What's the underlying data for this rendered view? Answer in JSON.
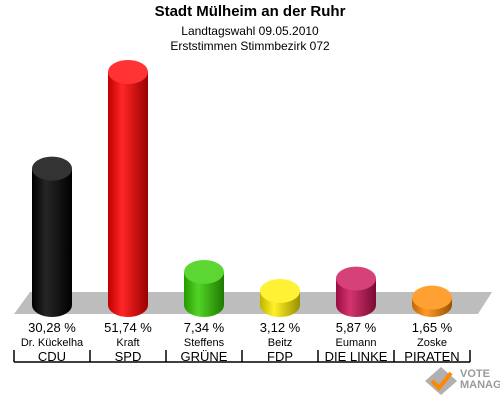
{
  "header": {
    "title": "Stadt Mülheim an der Ruhr",
    "subtitle": "Landtagswahl 09.05.2010",
    "subtitle2": "Erststimmen Stimmbezirk 072"
  },
  "logo": {
    "line1": "VOTE",
    "line2": "MANAGER",
    "icon": "checkmark-ballot-icon"
  },
  "colors": {
    "CDU": "#000000",
    "SPD": "#ff0000",
    "GRUENE": "#33cc00",
    "FDP": "#ffee00",
    "LINKE": "#cc1155",
    "PIRATEN": "#ff8800",
    "floor": "#bdbdbd"
  },
  "chart_data": {
    "type": "bar",
    "title": "Stadt Mülheim an der Ruhr",
    "subtitle": "Landtagswahl 09.05.2010 — Erststimmen Stimmbezirk 072",
    "ylim": [
      0,
      51.74
    ],
    "grid": false,
    "bars": [
      {
        "candidate": "Dr. Kückelha",
        "party": "CDU",
        "value": 30.28,
        "label": "30,28 %",
        "color": "#000000"
      },
      {
        "candidate": "Kraft",
        "party": "SPD",
        "value": 51.74,
        "label": "51,74 %",
        "color": "#ff0000"
      },
      {
        "candidate": "Steffens",
        "party": "GRÜNE",
        "value": 7.34,
        "label": "7,34 %",
        "color": "#33cc00"
      },
      {
        "candidate": "Beitz",
        "party": "FDP",
        "value": 3.12,
        "label": "3,12 %",
        "color": "#ffee00"
      },
      {
        "candidate": "Eumann",
        "party": "DIE LINKE",
        "value": 5.87,
        "label": "5,87 %",
        "color": "#cc1155"
      },
      {
        "candidate": "Zoske",
        "party": "PIRATEN",
        "value": 1.65,
        "label": "1,65 %",
        "color": "#ff8800"
      }
    ]
  }
}
